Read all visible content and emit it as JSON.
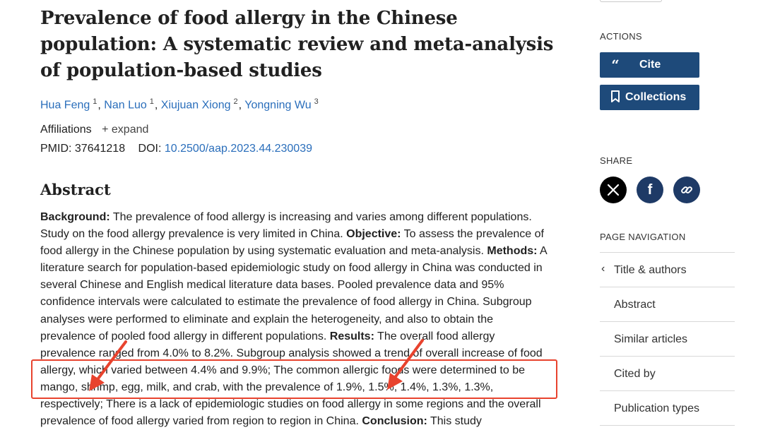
{
  "article": {
    "title": "Prevalence of food allergy in the Chinese population: A systematic review and meta-analysis of population-based studies",
    "authors": [
      {
        "name": "Hua Feng",
        "aff": "1"
      },
      {
        "name": "Nan Luo",
        "aff": "1"
      },
      {
        "name": "Xiujuan Xiong",
        "aff": "2"
      },
      {
        "name": "Yongning Wu",
        "aff": "3"
      }
    ],
    "affiliations_label": "Affiliations",
    "expand_label": "expand",
    "pmid_label": "PMID:",
    "pmid": "37641218",
    "doi_label": "DOI:",
    "doi": "10.2500/aap.2023.44.230039",
    "abstract_heading": "Abstract",
    "abstract": {
      "background_label": "Background:",
      "background": " The prevalence of food allergy is increasing and varies among different populations. Study on the food allergy prevalence is very limited in China. ",
      "objective_label": "Objective:",
      "objective": " To assess the prevalence of food allergy in the Chinese population by using systematic evaluation and meta-analysis. ",
      "methods_label": "Methods:",
      "methods": " A literature search for population-based epidemiologic study on food allergy in China was conducted in several Chinese and English medical literature data bases. Pooled prevalence data and 95% confidence intervals were calculated to estimate the prevalence of food allergy in China. Subgroup analyses were performed to eliminate and explain the heterogeneity, and also to obtain the prevalence of pooled food allergy in different populations. ",
      "results_label": "Results:",
      "results": " The overall food allergy prevalence ranged from 4.0% to 8.2%. Subgroup analysis showed a trend of overall increase of food allergy, which varied between 4.4% and 9.9%; The common allergic foods were determined to be mango, shrimp, egg, milk, and crab, with the prevalence of 1.9%, 1.5%, 1.4%, 1.3%, 1.3%, respectively; There is a lack of epidemiologic studies on food allergy in some regions and the overall prevalence of food allergy varied from region to region in China. ",
      "conclusion_label": "Conclusion:",
      "conclusion": " This study"
    }
  },
  "sidebar": {
    "actions_label": "ACTIONS",
    "cite_label": "Cite",
    "collections_label": "Collections",
    "share_label": "SHARE",
    "page_nav_label": "PAGE NAVIGATION",
    "nav_items": [
      "Title & authors",
      "Abstract",
      "Similar articles",
      "Cited by",
      "Publication types"
    ]
  },
  "colors": {
    "link": "#2a6ebb",
    "button_bg": "#1e4a7a",
    "highlight": "#e8432e",
    "x_bg": "#000000",
    "share_bg": "#1e3a66"
  },
  "icons": [
    "quote-icon",
    "bookmark-icon",
    "x-logo-icon",
    "facebook-icon",
    "link-icon",
    "chevron-left-icon",
    "plus-icon",
    "arrow-annotation-icon"
  ]
}
